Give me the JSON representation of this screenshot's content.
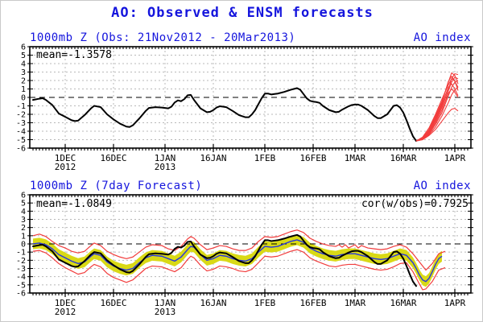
{
  "main_title": "AO: Observed & ENSM forecasts",
  "colors": {
    "title_blue": "#1515dd",
    "obs_black": "#000000",
    "ensemble_red": "#f23c3c",
    "forecast_blue": "#2737de",
    "band_yellow": "#d9d916",
    "grid_gray": "#b8b8b8"
  },
  "chart_data": [
    {
      "type": "line",
      "panel": "observed-with-ensm-forecast",
      "title_left": "1000mb Z (Obs: 21Nov2012 - 20Mar2013)",
      "title_right": "AO index",
      "annotation_mean": "mean=-1.3578",
      "x_unit": "days since 21Nov2012",
      "xlim_days": [
        -1,
        136
      ],
      "ylim": [
        -6,
        6
      ],
      "ytick_step": 1,
      "grid": true,
      "xticks": [
        {
          "day": 10,
          "label": "1DEC",
          "year": "2012"
        },
        {
          "day": 25,
          "label": "16DEC"
        },
        {
          "day": 41,
          "label": "1JAN",
          "year": "2013"
        },
        {
          "day": 56,
          "label": "16JAN"
        },
        {
          "day": 72,
          "label": "1FEB"
        },
        {
          "day": 87,
          "label": "16FEB"
        },
        {
          "day": 100,
          "label": "1MAR"
        },
        {
          "day": 115,
          "label": "16MAR"
        },
        {
          "day": 131,
          "label": "1APR"
        }
      ],
      "series_observed": {
        "name": "observed AO index",
        "x": [
          0,
          2,
          3,
          4,
          6,
          8,
          10,
          12,
          13,
          14,
          16,
          18,
          19,
          21,
          23,
          25,
          27,
          29,
          30,
          31,
          33,
          35,
          36,
          38,
          40,
          42,
          43,
          44,
          45,
          46,
          47,
          48,
          49,
          50,
          52,
          54,
          55,
          56,
          57,
          58,
          59,
          60,
          62,
          64,
          66,
          67,
          68,
          69,
          70,
          71,
          72,
          73,
          74,
          75,
          76,
          78,
          80,
          81,
          82,
          83,
          84,
          85,
          86,
          87,
          88,
          89,
          90,
          92,
          94,
          95,
          96,
          98,
          99,
          100,
          101,
          102,
          104,
          106,
          107,
          108,
          110,
          111,
          112,
          113,
          114,
          115,
          116,
          117,
          118,
          119
        ],
        "y": [
          -0.3,
          -0.15,
          -0.1,
          -0.3,
          -0.9,
          -1.9,
          -2.3,
          -2.7,
          -2.8,
          -2.75,
          -2.1,
          -1.3,
          -1.0,
          -1.15,
          -2.0,
          -2.6,
          -3.1,
          -3.45,
          -3.5,
          -3.3,
          -2.5,
          -1.6,
          -1.25,
          -1.15,
          -1.2,
          -1.3,
          -1.1,
          -0.6,
          -0.35,
          -0.45,
          -0.2,
          0.25,
          0.3,
          -0.3,
          -1.3,
          -1.75,
          -1.7,
          -1.5,
          -1.2,
          -1.05,
          -1.1,
          -1.15,
          -1.6,
          -2.1,
          -2.35,
          -2.35,
          -2.0,
          -1.5,
          -0.8,
          -0.1,
          0.45,
          0.45,
          0.35,
          0.4,
          0.45,
          0.65,
          0.9,
          1.0,
          1.1,
          0.9,
          0.4,
          -0.1,
          -0.4,
          -0.5,
          -0.55,
          -0.65,
          -1.0,
          -1.5,
          -1.75,
          -1.7,
          -1.45,
          -1.05,
          -0.9,
          -0.85,
          -0.85,
          -1.0,
          -1.5,
          -2.2,
          -2.45,
          -2.45,
          -2.0,
          -1.5,
          -1.0,
          -0.92,
          -1.2,
          -1.8,
          -2.7,
          -3.7,
          -4.6,
          -5.15
        ]
      },
      "ensemble": {
        "name": "ENSM forecast members",
        "x": [
          119,
          121,
          123,
          125,
          127,
          129,
          130,
          131,
          132
        ],
        "members": [
          [
            -5.15,
            -4.8,
            -3.8,
            -2.2,
            -0.5,
            1.8,
            2.9,
            2.6,
            1.6
          ],
          [
            -5.15,
            -4.9,
            -4.1,
            -2.8,
            -1.2,
            0.9,
            2.2,
            2.8,
            2.7
          ],
          [
            -5.15,
            -4.9,
            -4.3,
            -3.2,
            -1.8,
            0.2,
            1.2,
            1.8,
            2.0
          ],
          [
            -5.15,
            -5.0,
            -4.4,
            -3.5,
            -2.2,
            -0.6,
            0.3,
            0.9,
            1.2
          ],
          [
            -5.15,
            -4.7,
            -3.6,
            -2.0,
            -0.2,
            1.5,
            2.2,
            2.0,
            0.8
          ],
          [
            -5.15,
            -4.8,
            -4.0,
            -2.6,
            -0.8,
            1.2,
            1.6,
            1.0,
            0.2
          ],
          [
            -5.15,
            -5.0,
            -4.5,
            -3.8,
            -2.8,
            -1.8,
            -1.4,
            -1.3,
            -1.6
          ],
          [
            -5.15,
            -4.9,
            -4.2,
            -3.0,
            -1.5,
            0.5,
            1.0,
            0.6,
            0.0
          ],
          [
            -5.15,
            -4.8,
            -3.9,
            -2.4,
            -0.6,
            1.9,
            2.5,
            1.9,
            1.2
          ],
          [
            -5.15,
            -4.9,
            -4.0,
            -2.7,
            -1.0,
            0.8,
            1.8,
            2.4,
            2.2
          ]
        ]
      }
    },
    {
      "type": "line",
      "panel": "7day-forecast-verification",
      "title_left": "1000mb Z (7day Forecast)",
      "title_right": "AO index",
      "annotation_mean": "mean=-1.0849",
      "annotation_cor": "cor(w/obs)=0.7925",
      "x_unit": "days since 21Nov2012",
      "xlim_days": [
        -1,
        136
      ],
      "ylim": [
        -6,
        6
      ],
      "ytick_step": 1,
      "grid": true,
      "xticks": [
        {
          "day": 10,
          "label": "1DEC",
          "year": "2012"
        },
        {
          "day": 25,
          "label": "16DEC"
        },
        {
          "day": 41,
          "label": "1JAN",
          "year": "2013"
        },
        {
          "day": 56,
          "label": "16JAN"
        },
        {
          "day": 72,
          "label": "1FEB"
        },
        {
          "day": 87,
          "label": "16FEB"
        },
        {
          "day": 100,
          "label": "1MAR"
        },
        {
          "day": 115,
          "label": "16MAR"
        },
        {
          "day": 131,
          "label": "1APR"
        }
      ],
      "series_observed": {
        "name": "observed AO index",
        "x": [
          0,
          2,
          3,
          4,
          6,
          8,
          10,
          12,
          13,
          14,
          16,
          18,
          19,
          21,
          23,
          25,
          27,
          29,
          30,
          31,
          33,
          35,
          36,
          38,
          40,
          42,
          43,
          44,
          45,
          46,
          47,
          48,
          49,
          50,
          52,
          54,
          55,
          56,
          57,
          58,
          59,
          60,
          62,
          64,
          66,
          67,
          68,
          69,
          70,
          71,
          72,
          73,
          74,
          75,
          76,
          78,
          80,
          81,
          82,
          83,
          84,
          85,
          86,
          87,
          88,
          89,
          90,
          92,
          94,
          95,
          96,
          98,
          99,
          100,
          101,
          102,
          104,
          106,
          107,
          108,
          110,
          111,
          112,
          113,
          114,
          115,
          116,
          117,
          118,
          119
        ],
        "y": [
          -0.3,
          -0.15,
          -0.1,
          -0.3,
          -0.9,
          -1.9,
          -2.3,
          -2.7,
          -2.8,
          -2.75,
          -2.1,
          -1.3,
          -1.0,
          -1.15,
          -2.0,
          -2.6,
          -3.1,
          -3.45,
          -3.5,
          -3.3,
          -2.5,
          -1.6,
          -1.25,
          -1.15,
          -1.2,
          -1.3,
          -1.1,
          -0.6,
          -0.35,
          -0.45,
          -0.2,
          0.25,
          0.3,
          -0.3,
          -1.3,
          -1.75,
          -1.7,
          -1.5,
          -1.2,
          -1.05,
          -1.1,
          -1.15,
          -1.6,
          -2.1,
          -2.35,
          -2.35,
          -2.0,
          -1.5,
          -0.8,
          -0.1,
          0.45,
          0.45,
          0.35,
          0.4,
          0.45,
          0.65,
          0.9,
          1.0,
          1.1,
          0.9,
          0.4,
          -0.1,
          -0.4,
          -0.5,
          -0.55,
          -0.65,
          -1.0,
          -1.5,
          -1.75,
          -1.7,
          -1.45,
          -1.05,
          -0.9,
          -0.85,
          -0.85,
          -1.0,
          -1.5,
          -2.2,
          -2.45,
          -2.45,
          -2.0,
          -1.5,
          -1.0,
          -0.92,
          -1.2,
          -1.8,
          -2.7,
          -3.7,
          -4.6,
          -5.15
        ]
      },
      "series_forecast": {
        "name": "7-day ensemble-mean forecast",
        "x": [
          0,
          2,
          4,
          6,
          8,
          10,
          12,
          14,
          16,
          18,
          19,
          21,
          23,
          25,
          27,
          29,
          31,
          33,
          35,
          37,
          40,
          42,
          44,
          46,
          48,
          49,
          50,
          52,
          54,
          56,
          58,
          60,
          62,
          64,
          66,
          68,
          70,
          72,
          74,
          76,
          78,
          80,
          82,
          84,
          86,
          88,
          90,
          92,
          94,
          96,
          98,
          100,
          102,
          104,
          106,
          108,
          110,
          112,
          114,
          116,
          118,
          119,
          120,
          121,
          122,
          123,
          124,
          125,
          126,
          127
        ],
        "y": [
          0.0,
          0.1,
          -0.1,
          -0.6,
          -1.3,
          -1.7,
          -2.1,
          -2.4,
          -2.2,
          -1.5,
          -1.2,
          -1.4,
          -2.2,
          -2.7,
          -3.0,
          -3.2,
          -3.0,
          -2.3,
          -1.7,
          -1.4,
          -1.5,
          -1.8,
          -2.1,
          -1.6,
          -0.7,
          -0.3,
          -0.4,
          -1.3,
          -2.0,
          -1.8,
          -1.4,
          -1.5,
          -1.8,
          -2.0,
          -2.1,
          -1.8,
          -1.0,
          -0.3,
          -0.4,
          -0.3,
          0.0,
          0.3,
          0.5,
          0.2,
          -0.5,
          -0.9,
          -1.2,
          -1.4,
          -1.5,
          -1.3,
          -1.2,
          -1.2,
          -1.4,
          -1.6,
          -1.8,
          -1.9,
          -1.8,
          -1.5,
          -1.2,
          -1.4,
          -2.3,
          -3.0,
          -3.8,
          -4.4,
          -4.6,
          -4.2,
          -3.4,
          -2.5,
          -1.8,
          -1.5
        ]
      },
      "band_halfwidth": 0.65,
      "envelope_upper": {
        "name": "ensemble max",
        "x": [
          0,
          2,
          4,
          6,
          8,
          10,
          12,
          14,
          16,
          18,
          19,
          21,
          23,
          25,
          27,
          29,
          31,
          33,
          35,
          37,
          40,
          42,
          44,
          46,
          48,
          49,
          50,
          52,
          54,
          56,
          58,
          60,
          62,
          64,
          66,
          68,
          70,
          72,
          74,
          76,
          78,
          80,
          82,
          84,
          86,
          88,
          90,
          92,
          94,
          95,
          96,
          97,
          98,
          100,
          101,
          102,
          104,
          106,
          108,
          110,
          112,
          114,
          116,
          118,
          120,
          122,
          124,
          126,
          128
        ],
        "y": [
          1.0,
          1.2,
          0.9,
          0.3,
          -0.2,
          -0.5,
          -0.9,
          -1.1,
          -0.9,
          -0.2,
          0.1,
          -0.2,
          -0.9,
          -1.3,
          -1.6,
          -1.8,
          -1.6,
          -1.0,
          -0.4,
          -0.1,
          -0.2,
          -0.6,
          -0.8,
          -0.3,
          0.6,
          0.9,
          0.7,
          -0.1,
          -0.7,
          -0.5,
          -0.2,
          -0.3,
          -0.6,
          -0.8,
          -0.8,
          -0.5,
          0.3,
          0.9,
          0.8,
          0.9,
          1.2,
          1.5,
          1.7,
          1.4,
          0.7,
          0.3,
          0.0,
          -0.2,
          -0.3,
          -0.1,
          -0.4,
          -0.1,
          -0.5,
          -0.1,
          -0.5,
          -0.2,
          -0.5,
          -0.6,
          -0.7,
          -0.6,
          -0.3,
          -0.1,
          -0.4,
          -1.2,
          -2.2,
          -3.2,
          -2.4,
          -1.2,
          -0.9
        ]
      },
      "envelope_lower": {
        "name": "ensemble min",
        "x": [
          0,
          2,
          4,
          6,
          8,
          10,
          12,
          14,
          16,
          18,
          19,
          21,
          23,
          25,
          27,
          29,
          31,
          33,
          35,
          37,
          40,
          42,
          44,
          46,
          48,
          49,
          50,
          52,
          54,
          56,
          58,
          60,
          62,
          64,
          66,
          68,
          70,
          72,
          74,
          76,
          78,
          80,
          82,
          84,
          86,
          88,
          90,
          92,
          94,
          96,
          98,
          100,
          102,
          104,
          106,
          108,
          110,
          112,
          114,
          116,
          118,
          120,
          121,
          122,
          124,
          126,
          128
        ],
        "y": [
          -0.9,
          -0.8,
          -1.1,
          -1.7,
          -2.4,
          -2.9,
          -3.3,
          -3.7,
          -3.5,
          -2.8,
          -2.5,
          -2.8,
          -3.6,
          -4.1,
          -4.4,
          -4.7,
          -4.4,
          -3.7,
          -3.0,
          -2.7,
          -2.8,
          -3.1,
          -3.4,
          -2.9,
          -1.9,
          -1.5,
          -1.7,
          -2.6,
          -3.3,
          -3.1,
          -2.7,
          -2.8,
          -3.0,
          -3.3,
          -3.4,
          -3.1,
          -2.3,
          -1.5,
          -1.6,
          -1.5,
          -1.2,
          -0.9,
          -0.7,
          -1.0,
          -1.7,
          -2.1,
          -2.4,
          -2.7,
          -2.8,
          -2.6,
          -2.5,
          -2.5,
          -2.7,
          -2.9,
          -3.1,
          -3.2,
          -3.1,
          -2.8,
          -2.4,
          -2.3,
          -3.4,
          -4.9,
          -5.6,
          -5.5,
          -4.6,
          -3.2,
          -2.9
        ]
      }
    }
  ]
}
